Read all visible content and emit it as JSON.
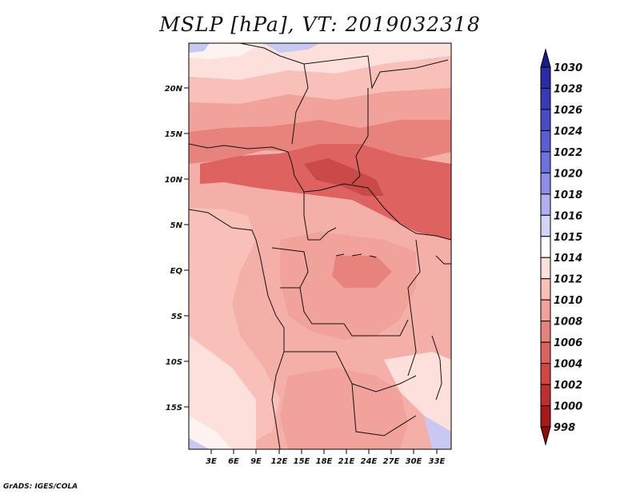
{
  "title": "MSLP [hPa], VT: 2019032318",
  "credit": "GrADS: IGES/COLA",
  "lat_labels": [
    "20N",
    "15N",
    "10N",
    "5N",
    "EQ",
    "5S",
    "10S",
    "15S"
  ],
  "lon_labels": [
    "3E",
    "6E",
    "9E",
    "12E",
    "15E",
    "18E",
    "21E",
    "24E",
    "27E",
    "30E",
    "33E"
  ],
  "colorbar": {
    "levels": [
      "1030",
      "1028",
      "1026",
      "1024",
      "1022",
      "1020",
      "1018",
      "1016",
      "1015",
      "1014",
      "1012",
      "1010",
      "1008",
      "1006",
      "1004",
      "1002",
      "1000",
      "998"
    ],
    "colors": [
      "#1c1a8a",
      "#2b2aa8",
      "#3a3ab8",
      "#4b4bc8",
      "#5c5cd6",
      "#7070e0",
      "#8e8ee8",
      "#b0b0f0",
      "#d4d4f8",
      "#ffffff",
      "#fde0dc",
      "#f8c0b8",
      "#f1a29a",
      "#e8827c",
      "#de6260",
      "#d44646",
      "#c02e2e",
      "#a81818",
      "#8c0c0c"
    ]
  },
  "palette": {
    "p1012": "#fde0dc",
    "p1010": "#f8c0b8",
    "p1008": "#f1a29a",
    "p1006": "#e8827c",
    "p1004": "#de6260",
    "p1002": "#c94a48",
    "p1014": "#fff3f1",
    "p1016": "#c8c8f2"
  }
}
